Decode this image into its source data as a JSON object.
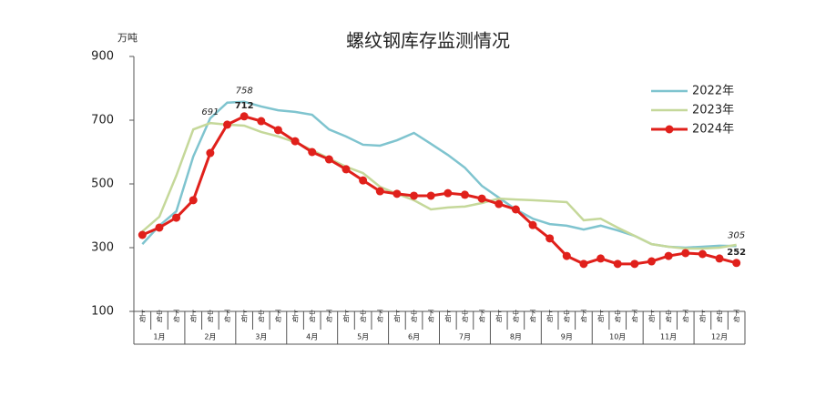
{
  "chart_data": {
    "type": "line",
    "title": "螺纹钢库存监测情况",
    "y_unit": "万吨",
    "categories": [
      "上旬",
      "中旬",
      "下旬",
      "上旬",
      "中旬",
      "下旬",
      "上旬",
      "中旬",
      "下旬",
      "上旬",
      "中旬",
      "下旬",
      "上旬",
      "中旬",
      "下旬",
      "上旬",
      "中旬",
      "下旬",
      "上旬",
      "中旬",
      "下旬",
      "上旬",
      "中旬",
      "下旬",
      "上旬",
      "中旬",
      "下旬",
      "上旬",
      "中旬",
      "下旬",
      "上旬",
      "中旬",
      "下旬",
      "上旬",
      "中旬",
      "下旬"
    ],
    "months": [
      "1月",
      "2月",
      "3月",
      "4月",
      "5月",
      "6月",
      "7月",
      "8月",
      "9月",
      "10月",
      "11月",
      "12月"
    ],
    "ylim": [
      100,
      900
    ],
    "yticks": [
      100,
      300,
      500,
      700,
      900
    ],
    "grid": false,
    "legend": "upper right",
    "series": [
      {
        "name": "2022年",
        "color": "#7fc4cf",
        "marker": false,
        "values": [
          311,
          369,
          414,
          586,
          706,
          755,
          758,
          743,
          731,
          726,
          717,
          671,
          649,
          623,
          620,
          637,
          660,
          626,
          591,
          551,
          494,
          457,
          420,
          391,
          374,
          369,
          357,
          369,
          354,
          337,
          311,
          303,
          300,
          303,
          306,
          305
        ],
        "value_labels": [
          null,
          null,
          null,
          null,
          null,
          null,
          "758",
          null,
          null,
          null,
          null,
          null,
          null,
          null,
          null,
          null,
          null,
          null,
          null,
          null,
          null,
          null,
          null,
          null,
          null,
          null,
          null,
          null,
          null,
          null,
          null,
          null,
          null,
          null,
          null,
          "305"
        ]
      },
      {
        "name": "2023年",
        "color": "#c5d89a",
        "marker": false,
        "values": [
          351,
          397,
          526,
          671,
          691,
          686,
          683,
          663,
          649,
          631,
          606,
          580,
          554,
          534,
          491,
          469,
          449,
          420,
          426,
          429,
          440,
          454,
          451,
          449,
          446,
          443,
          386,
          391,
          363,
          337,
          311,
          303,
          297,
          297,
          300,
          309
        ],
        "value_labels": [
          null,
          null,
          null,
          null,
          "691",
          null,
          null,
          null,
          null,
          null,
          null,
          null,
          null,
          null,
          null,
          null,
          null,
          null,
          null,
          null,
          null,
          null,
          null,
          null,
          null,
          null,
          null,
          null,
          null,
          null,
          null,
          null,
          null,
          null,
          null,
          null
        ]
      },
      {
        "name": "2024年",
        "color": "#e0201b",
        "marker": true,
        "values": [
          340,
          363,
          394,
          449,
          597,
          686,
          712,
          697,
          669,
          634,
          600,
          577,
          546,
          511,
          477,
          469,
          463,
          463,
          471,
          466,
          454,
          437,
          420,
          371,
          329,
          274,
          249,
          266,
          249,
          249,
          257,
          274,
          283,
          280,
          266,
          252
        ],
        "value_labels": [
          null,
          null,
          null,
          null,
          null,
          null,
          "712",
          null,
          null,
          null,
          null,
          null,
          null,
          null,
          null,
          null,
          null,
          null,
          null,
          null,
          null,
          null,
          null,
          null,
          null,
          null,
          null,
          null,
          null,
          null,
          null,
          null,
          null,
          null,
          null,
          "252"
        ]
      }
    ]
  }
}
